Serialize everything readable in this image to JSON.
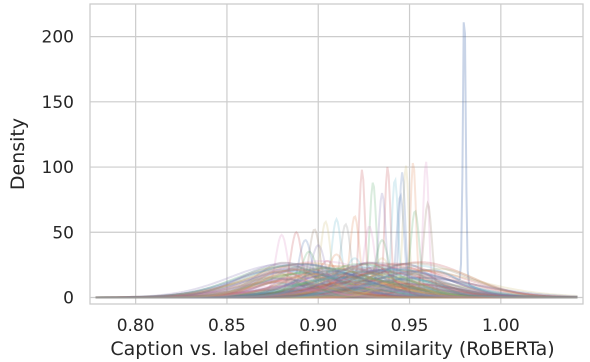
{
  "chart_data": {
    "type": "area",
    "title": "",
    "xlabel": "Caption vs. label defintion similarity (RoBERTa)",
    "ylabel": "Density",
    "xlim": [
      0.775,
      1.045
    ],
    "ylim": [
      -5,
      225
    ],
    "xticks": [
      0.8,
      0.85,
      0.9,
      0.95,
      1.0
    ],
    "xtick_labels": [
      "0.80",
      "0.85",
      "0.90",
      "0.95",
      "1.00"
    ],
    "yticks": [
      0,
      50,
      100,
      150,
      200
    ],
    "ytick_labels": [
      "0",
      "50",
      "100",
      "150",
      "200"
    ],
    "grid": true,
    "legend": "none",
    "style": "many overlapping semi-transparent kernel density curves",
    "series_colors": [
      "#4c72b0",
      "#dd8452",
      "#55a868",
      "#c44e52",
      "#8172b3",
      "#937860",
      "#da8bc3",
      "#8c8c8c",
      "#ccb974",
      "#64b5cd"
    ],
    "peak_series": [
      {
        "center": 0.98,
        "peak": 211,
        "color": "#4c72b0"
      },
      {
        "center": 0.959,
        "peak": 104,
        "color": "#da8bc3"
      },
      {
        "center": 0.952,
        "peak": 103,
        "color": "#dd8452"
      },
      {
        "center": 0.948,
        "peak": 101,
        "color": "#ccb974"
      },
      {
        "center": 0.946,
        "peak": 96,
        "color": "#4c72b0"
      },
      {
        "center": 0.938,
        "peak": 100,
        "color": "#c44e52"
      },
      {
        "center": 0.942,
        "peak": 90,
        "color": "#64b5cd"
      },
      {
        "center": 0.93,
        "peak": 88,
        "color": "#55a868"
      },
      {
        "center": 0.924,
        "peak": 98,
        "color": "#c44e52"
      },
      {
        "center": 0.935,
        "peak": 80,
        "color": "#8172b3"
      },
      {
        "center": 0.945,
        "peak": 78,
        "color": "#4c72b0"
      },
      {
        "center": 0.96,
        "peak": 72,
        "color": "#937860"
      },
      {
        "center": 0.953,
        "peak": 66,
        "color": "#55a868"
      },
      {
        "center": 0.92,
        "peak": 62,
        "color": "#dd8452"
      },
      {
        "center": 0.91,
        "peak": 60,
        "color": "#64b5cd"
      },
      {
        "center": 0.904,
        "peak": 58,
        "color": "#ccb974"
      },
      {
        "center": 0.915,
        "peak": 56,
        "color": "#8c8c8c"
      },
      {
        "center": 0.928,
        "peak": 54,
        "color": "#da8bc3"
      },
      {
        "center": 0.898,
        "peak": 52,
        "color": "#937860"
      },
      {
        "center": 0.888,
        "peak": 50,
        "color": "#c44e52"
      },
      {
        "center": 0.88,
        "peak": 48,
        "color": "#da8bc3"
      },
      {
        "center": 0.893,
        "peak": 44,
        "color": "#4c72b0"
      },
      {
        "center": 0.935,
        "peak": 44,
        "color": "#55a868"
      },
      {
        "center": 0.9,
        "peak": 40,
        "color": "#8172b3"
      },
      {
        "center": 0.895,
        "peak": 35,
        "color": "#55a868"
      },
      {
        "center": 0.91,
        "peak": 33,
        "color": "#dd8452"
      },
      {
        "center": 0.92,
        "peak": 30,
        "color": "#64b5cd"
      },
      {
        "center": 0.935,
        "peak": 30,
        "color": "#ccb974"
      },
      {
        "center": 0.905,
        "peak": 28,
        "color": "#c44e52"
      },
      {
        "center": 0.925,
        "peak": 26,
        "color": "#8172b3"
      },
      {
        "center": 0.915,
        "peak": 24,
        "color": "#55a868"
      },
      {
        "center": 0.898,
        "peak": 22,
        "color": "#dd8452"
      },
      {
        "center": 0.93,
        "peak": 20,
        "color": "#4c72b0"
      },
      {
        "center": 0.885,
        "peak": 18,
        "color": "#937860"
      },
      {
        "center": 0.945,
        "peak": 18,
        "color": "#da8bc3"
      },
      {
        "center": 0.91,
        "peak": 16,
        "color": "#8c8c8c"
      },
      {
        "center": 0.92,
        "peak": 14,
        "color": "#ccb974"
      },
      {
        "center": 0.875,
        "peak": 12,
        "color": "#64b5cd"
      },
      {
        "center": 0.955,
        "peak": 12,
        "color": "#55a868"
      },
      {
        "center": 0.9,
        "peak": 10,
        "color": "#c44e52"
      }
    ]
  }
}
